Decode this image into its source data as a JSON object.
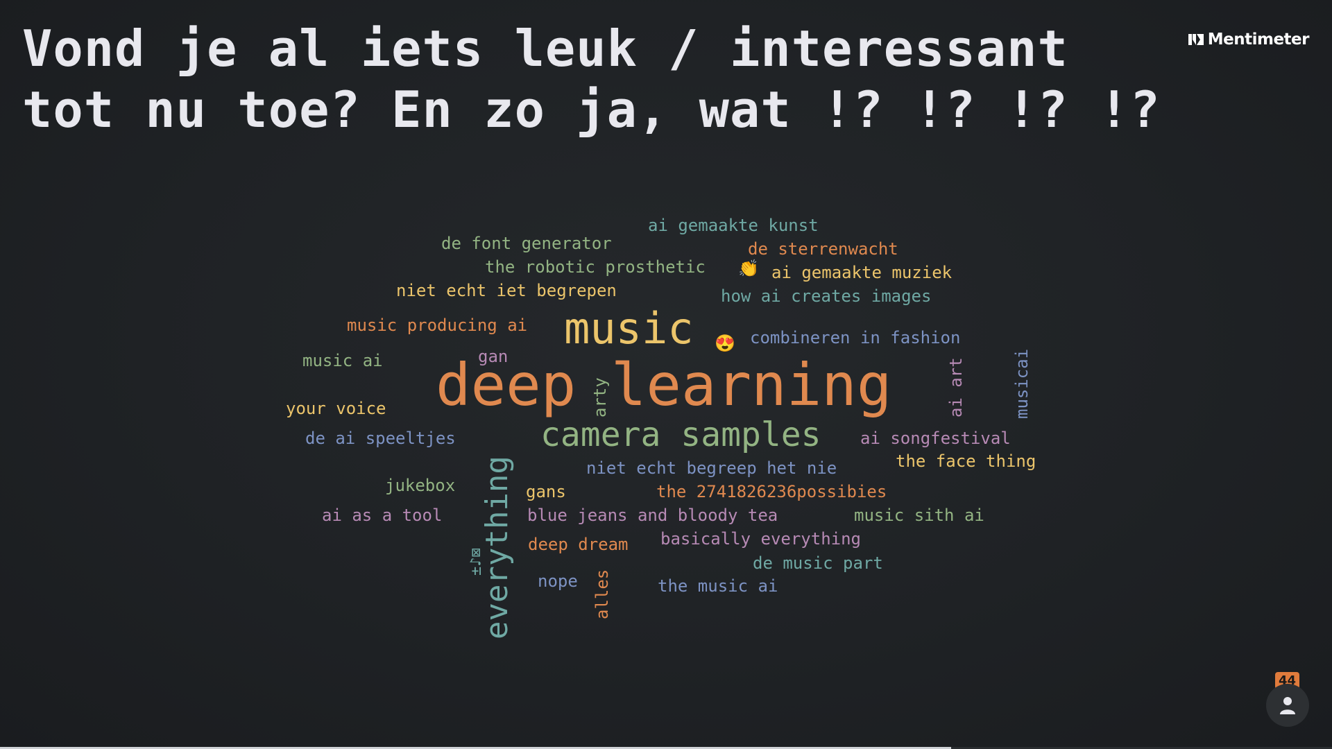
{
  "question": {
    "title": "Vond je al iets leuk / interessant tot nu toe? En zo ja, wat !? !? !? !?"
  },
  "brand": {
    "name": "Mentimeter"
  },
  "colors": {
    "background": "#1e2124",
    "title": "#e8e8ee",
    "orange": "#e0894f",
    "yellow": "#ecc56b",
    "green": "#93b483",
    "teal": "#6fa9a4",
    "blue": "#7d93c4",
    "purple": "#b78ab5",
    "badge": "#e07b3c"
  },
  "word_cloud": {
    "words": [
      {
        "text": "deep learning",
        "color": "orange",
        "size": 84
      },
      {
        "text": "music",
        "color": "yellow",
        "size": 62
      },
      {
        "text": "camera samples",
        "color": "green",
        "size": 48
      },
      {
        "text": "everything",
        "color": "teal",
        "size": 44,
        "vertical": true
      },
      {
        "text": "ai gemaakte kunst",
        "color": "teal",
        "size": 24
      },
      {
        "text": "de font generator",
        "color": "green",
        "size": 24
      },
      {
        "text": "de sterrenwacht",
        "color": "orange",
        "size": 24
      },
      {
        "text": "the robotic prosthetic",
        "color": "green",
        "size": 24
      },
      {
        "text": "👏",
        "color": "yellow",
        "size": 24
      },
      {
        "text": "ai gemaakte muziek",
        "color": "yellow",
        "size": 24
      },
      {
        "text": "niet echt iet begrepen",
        "color": "yellow",
        "size": 24
      },
      {
        "text": "how ai creates images",
        "color": "teal",
        "size": 24
      },
      {
        "text": "music producing ai",
        "color": "orange",
        "size": 24
      },
      {
        "text": "😍",
        "color": "yellow",
        "size": 24
      },
      {
        "text": "combineren in fashion",
        "color": "blue",
        "size": 24
      },
      {
        "text": "music ai",
        "color": "green",
        "size": 24
      },
      {
        "text": "gan",
        "color": "purple",
        "size": 24
      },
      {
        "text": "your voice",
        "color": "yellow",
        "size": 24
      },
      {
        "text": "arty",
        "color": "green",
        "size": 24,
        "vertical": true
      },
      {
        "text": "ai art",
        "color": "purple",
        "size": 24,
        "vertical": true
      },
      {
        "text": "musicai",
        "color": "blue",
        "size": 24,
        "vertical": true
      },
      {
        "text": "de ai speeltjes",
        "color": "blue",
        "size": 24
      },
      {
        "text": "ai songfestival",
        "color": "purple",
        "size": 24
      },
      {
        "text": "niet echt begreep het nie",
        "color": "blue",
        "size": 24
      },
      {
        "text": "the face thing",
        "color": "yellow",
        "size": 24
      },
      {
        "text": "jukebox",
        "color": "green",
        "size": 24
      },
      {
        "text": "gans",
        "color": "yellow",
        "size": 24
      },
      {
        "text": "the 2741826236possibies",
        "color": "orange",
        "size": 24
      },
      {
        "text": "ai as a tool",
        "color": "purple",
        "size": 24
      },
      {
        "text": "blue jeans and bloody tea",
        "color": "purple",
        "size": 24
      },
      {
        "text": "music sith ai",
        "color": "green",
        "size": 24
      },
      {
        "text": "deep dream",
        "color": "orange",
        "size": 24
      },
      {
        "text": "basically everything",
        "color": "purple",
        "size": 24
      },
      {
        "text": "±♪⊠",
        "color": "teal",
        "size": 22,
        "vertical": true
      },
      {
        "text": "de music part",
        "color": "teal",
        "size": 24
      },
      {
        "text": "nope",
        "color": "blue",
        "size": 24
      },
      {
        "text": "alles",
        "color": "orange",
        "size": 24,
        "vertical": true
      },
      {
        "text": "the music ai",
        "color": "blue",
        "size": 24
      }
    ]
  },
  "participants": {
    "count": "44",
    "progress": 0.714
  }
}
